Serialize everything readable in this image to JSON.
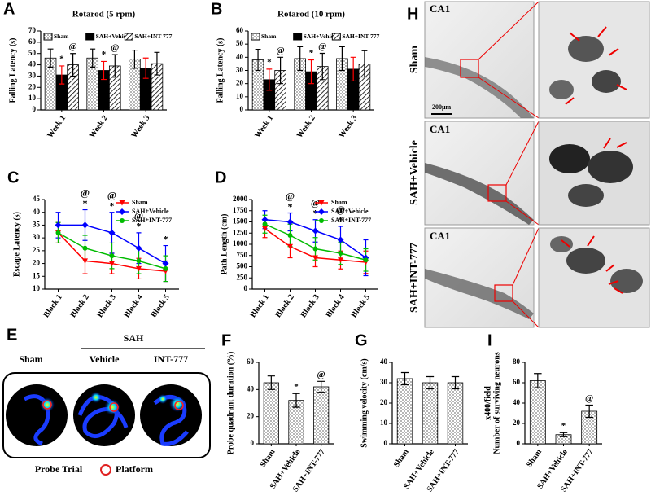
{
  "chart_data": [
    {
      "label": "A",
      "type": "bar",
      "title": "Rotarod (5 rpm)",
      "ylabel": "Falling Latency (s)",
      "categories": [
        "Week 1",
        "Week 2",
        "Week 3"
      ],
      "ylim": [
        0,
        70
      ],
      "yticks": [
        0,
        10,
        20,
        30,
        40,
        50,
        60,
        70
      ],
      "legend": "top",
      "series": [
        {
          "name": "Sham",
          "color": "#000000",
          "fill": "dots",
          "error_color": "#000000",
          "values": [
            46,
            46,
            45
          ],
          "errors": [
            8,
            8,
            8
          ]
        },
        {
          "name": "SAH+Vehicle",
          "color": "#000000",
          "fill": "solid",
          "error_color": "#ff0000",
          "values": [
            31,
            35,
            37
          ],
          "errors": [
            8,
            8,
            9
          ],
          "significance": [
            "*",
            "*",
            null
          ]
        },
        {
          "name": "SAH+INT-777",
          "color": "#000000",
          "fill": "hatch",
          "error_color": "#000000",
          "values": [
            40,
            39,
            41
          ],
          "errors": [
            10,
            10,
            10
          ],
          "significance": [
            "@",
            "@",
            null
          ]
        }
      ]
    },
    {
      "label": "B",
      "type": "bar",
      "title": "Rotarod (10 rpm)",
      "ylabel": "Falling Latency (s)",
      "categories": [
        "Week 1",
        "Week 2",
        "Week 3"
      ],
      "ylim": [
        0,
        60
      ],
      "yticks": [
        0,
        10,
        20,
        30,
        40,
        50,
        60
      ],
      "legend": "top",
      "series": [
        {
          "name": "Sham",
          "color": "#000000",
          "fill": "dots",
          "error_color": "#000000",
          "values": [
            38,
            39,
            39
          ],
          "errors": [
            8,
            9,
            9
          ]
        },
        {
          "name": "SAH+Vehicle",
          "color": "#000000",
          "fill": "solid",
          "error_color": "#ff0000",
          "values": [
            23,
            29,
            31
          ],
          "errors": [
            8,
            9,
            9
          ],
          "significance": [
            "*",
            "*",
            null
          ]
        },
        {
          "name": "SAH+INT-777",
          "color": "#000000",
          "fill": "hatch",
          "error_color": "#000000",
          "values": [
            30,
            33,
            35
          ],
          "errors": [
            10,
            10,
            10
          ],
          "significance": [
            "@",
            "@",
            null
          ]
        }
      ]
    },
    {
      "label": "C",
      "type": "line",
      "ylabel": "Escape Latency (s)",
      "categories": [
        "Block 1",
        "Block 2",
        "Block 3",
        "Block 4",
        "Block 5"
      ],
      "ylim": [
        10,
        45
      ],
      "yticks": [
        10,
        15,
        20,
        25,
        30,
        35,
        40,
        45
      ],
      "legend": "top-right",
      "series": [
        {
          "name": "Sham",
          "color": "#ff0000",
          "marker": "triangle",
          "values": [
            32,
            21,
            20,
            18,
            17
          ],
          "errors": [
            4,
            5,
            4,
            4,
            4
          ]
        },
        {
          "name": "SAH+Vehicle",
          "color": "#0000ff",
          "marker": "diamond",
          "values": [
            35,
            35,
            32,
            26,
            20
          ],
          "errors": [
            5,
            6,
            8,
            6,
            7
          ],
          "significance": [
            null,
            "*",
            "*",
            "*",
            "*"
          ]
        },
        {
          "name": "SAH+INT-777",
          "color": "#00bb00",
          "marker": "circle",
          "values": [
            32,
            26,
            23,
            21,
            18
          ],
          "errors": [
            4,
            5,
            5,
            5,
            5
          ],
          "significance": [
            null,
            "@",
            "@",
            "@",
            null
          ]
        }
      ]
    },
    {
      "label": "D",
      "type": "line",
      "ylabel": "Path Length (cm)",
      "categories": [
        "Block 1",
        "Block 2",
        "Block 3",
        "Block 4",
        "Block 5"
      ],
      "ylim": [
        0,
        2000
      ],
      "yticks": [
        0,
        250,
        500,
        750,
        1000,
        1250,
        1500,
        1750,
        2000
      ],
      "legend": "top-right",
      "series": [
        {
          "name": "Sham",
          "color": "#ff0000",
          "marker": "triangle",
          "values": [
            1350,
            950,
            700,
            650,
            600
          ],
          "errors": [
            200,
            250,
            200,
            200,
            250
          ]
        },
        {
          "name": "SAH+Vehicle",
          "color": "#0000ff",
          "marker": "diamond",
          "values": [
            1550,
            1500,
            1300,
            1100,
            700
          ],
          "errors": [
            200,
            200,
            250,
            300,
            400
          ],
          "significance": [
            null,
            "*",
            "*",
            "*",
            null
          ]
        },
        {
          "name": "SAH+INT-777",
          "color": "#00bb00",
          "marker": "circle",
          "values": [
            1450,
            1200,
            900,
            800,
            650
          ],
          "errors": [
            200,
            250,
            250,
            250,
            250
          ],
          "significance": [
            null,
            "@",
            "@",
            "@",
            null
          ]
        }
      ]
    },
    {
      "label": "F",
      "type": "bar",
      "ylabel": "Probe quadrant duration (%)",
      "categories": [
        "Sham",
        "SAH+Vehicle",
        "SAH+INT-777"
      ],
      "ylim": [
        0,
        60
      ],
      "yticks": [
        0,
        20,
        40,
        60
      ],
      "series": [
        {
          "color": "#000000",
          "fill": "dots",
          "error_color": "#000000",
          "values": [
            45,
            32,
            42
          ],
          "errors": [
            5,
            5,
            4
          ],
          "significance": [
            null,
            "*",
            "@"
          ]
        }
      ]
    },
    {
      "label": "G",
      "type": "bar",
      "ylabel": "Swimming velocity (cm/s)",
      "categories": [
        "Sham",
        "SAH+Vehicle",
        "SAH+INT-777"
      ],
      "ylim": [
        0,
        40
      ],
      "yticks": [
        0,
        10,
        20,
        30,
        40
      ],
      "series": [
        {
          "color": "#000000",
          "fill": "dots",
          "error_color": "#000000",
          "values": [
            32,
            30,
            30
          ],
          "errors": [
            3,
            3,
            3
          ]
        }
      ]
    },
    {
      "label": "I",
      "type": "bar",
      "ylabel": [
        "Number of surviving neurons",
        "x400/field"
      ],
      "categories": [
        "Sham",
        "SAH+Vehicle",
        "SAH+INT-777"
      ],
      "ylim": [
        0,
        80
      ],
      "yticks": [
        0,
        20,
        40,
        60,
        80
      ],
      "series": [
        {
          "color": "#000000",
          "fill": "dots",
          "error_color": "#000000",
          "values": [
            62,
            9,
            32
          ],
          "errors": [
            7,
            2,
            6
          ],
          "significance": [
            null,
            "*",
            "@"
          ]
        }
      ]
    }
  ],
  "maze": {
    "label": "E",
    "group": "SAH",
    "conditions": [
      "Sham",
      "Vehicle",
      "INT-777"
    ],
    "legend": [
      "Probe Trial",
      "Platform"
    ]
  },
  "histology": {
    "label": "H",
    "rows": [
      {
        "name": "Sham",
        "region": "CA1"
      },
      {
        "name": "SAH+Vehicle",
        "region": "CA1"
      },
      {
        "name": "SAH+INT-777",
        "region": "CA1"
      }
    ],
    "scale_bar": "200μm"
  }
}
